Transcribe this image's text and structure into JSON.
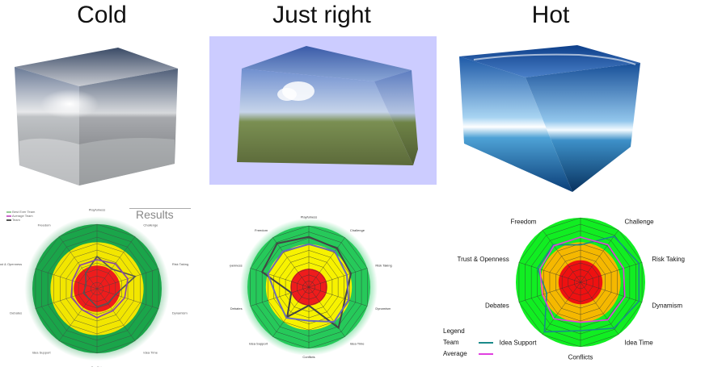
{
  "columns": [
    {
      "title": "Cold"
    },
    {
      "title": "Just right"
    },
    {
      "title": "Hot"
    }
  ],
  "chart_cold": {
    "header": "Results",
    "legend": [
      "Best Ever Team",
      "Average Team",
      "Team"
    ],
    "axes": [
      "Playfulness",
      "Challenge",
      "Risk Taking",
      "Dynamism",
      "Idea Time",
      "Conflicts",
      "Idea Support",
      "Debates",
      "Trust & Openness",
      "Freedom"
    ],
    "series": [
      {
        "name": "Team",
        "color": "#555555",
        "values": [
          0.5,
          0.38,
          0.62,
          0.3,
          0.28,
          0.28,
          0.2,
          0.22,
          0.18,
          0.3
        ]
      },
      {
        "name": "Average",
        "color": "#8844aa",
        "values": [
          0.45,
          0.48,
          0.5,
          0.45,
          0.42,
          0.45,
          0.4,
          0.42,
          0.4,
          0.45
        ]
      }
    ]
  },
  "chart_just_right": {
    "axes": [
      "Playfulness",
      "Challenge",
      "Risk Taking",
      "Dynamism",
      "Idea Time",
      "Conflicts",
      "Idea Support",
      "Debates",
      "Trust & Openness",
      "Freedom"
    ],
    "series": [
      {
        "name": "Team",
        "color": "#444444",
        "values": [
          0.82,
          0.78,
          0.72,
          0.62,
          0.82,
          0.3,
          0.6,
          0.3,
          0.8,
          0.88
        ]
      },
      {
        "name": "Average",
        "color": "#6a6ab8",
        "values": [
          0.7,
          0.72,
          0.65,
          0.68,
          0.7,
          0.55,
          0.62,
          0.55,
          0.7,
          0.72
        ]
      }
    ]
  },
  "chart_hot": {
    "axes": [
      "Playfulness",
      "Challenge",
      "Risk Taking",
      "Dynamism",
      "Idea Time",
      "Conflicts",
      "Idea Support",
      "Debates",
      "Trust & Openness",
      "Freedom"
    ],
    "series": [
      {
        "name": "Team",
        "color": "#1a8a8a",
        "values": [
          0.58,
          0.88,
          0.95,
          0.95,
          0.88,
          0.75,
          0.95,
          0.55,
          0.7,
          0.72
        ]
      },
      {
        "name": "Average",
        "color": "#e040e0",
        "values": [
          0.7,
          0.72,
          0.7,
          0.72,
          0.72,
          0.62,
          0.7,
          0.62,
          0.66,
          0.7
        ]
      }
    ],
    "legend_title": "Legend",
    "legend": [
      {
        "label": "Team",
        "color": "#1a8a8a"
      },
      {
        "label": "Average",
        "color": "#e040e0"
      }
    ]
  }
}
